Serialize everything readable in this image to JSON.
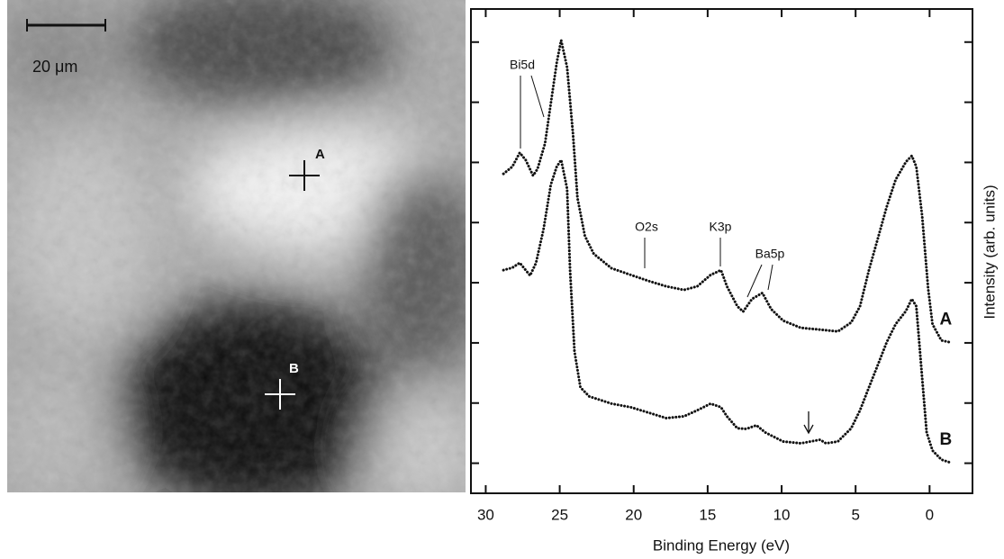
{
  "image": {
    "scale_bar": "20 μm",
    "points": [
      "A",
      "B"
    ]
  },
  "chart_data": {
    "type": "line",
    "xlabel": "Binding Energy (eV)",
    "ylabel": "Intensity (arb. units)",
    "xlim": [
      31,
      -2.9
    ],
    "xticks": [
      30,
      25,
      20,
      15,
      10,
      5,
      0
    ],
    "ylim": [
      -0.5,
      7.55
    ],
    "yticks": [
      0,
      1,
      2,
      3,
      4,
      5,
      6,
      7
    ],
    "annotations": [
      "Bi5d",
      "O2s",
      "K3p",
      "Ba5p"
    ],
    "series": [
      {
        "name": "A",
        "color": "#111111",
        "x": [
          28.8,
          28.2,
          27.7,
          27.3,
          26.8,
          26.5,
          26.0,
          25.6,
          25.2,
          24.9,
          24.5,
          24.1,
          23.8,
          23.3,
          22.7,
          21.5,
          20.2,
          19.0,
          17.8,
          16.6,
          15.7,
          14.8,
          14.1,
          13.7,
          13.0,
          12.6,
          12.0,
          11.3,
          10.7,
          9.9,
          8.7,
          7.4,
          6.2,
          5.3,
          4.7,
          4.1,
          3.5,
          2.9,
          2.3,
          1.6,
          1.2,
          0.9,
          0.5,
          0.1,
          -0.2,
          -0.8,
          -1.4
        ],
        "values": [
          4.81,
          4.93,
          5.16,
          5.04,
          4.78,
          4.89,
          5.31,
          5.98,
          6.66,
          7.03,
          6.58,
          5.46,
          4.41,
          3.78,
          3.48,
          3.24,
          3.13,
          3.03,
          2.94,
          2.88,
          2.94,
          3.13,
          3.21,
          2.94,
          2.61,
          2.52,
          2.73,
          2.83,
          2.56,
          2.37,
          2.25,
          2.22,
          2.19,
          2.34,
          2.61,
          3.21,
          3.73,
          4.26,
          4.71,
          5.01,
          5.11,
          4.93,
          4.11,
          2.91,
          2.31,
          2.04,
          2.01
        ]
      },
      {
        "name": "B",
        "color": "#111111",
        "x": [
          28.8,
          28.2,
          27.7,
          27.3,
          27.0,
          26.6,
          26.1,
          25.6,
          25.2,
          24.9,
          24.5,
          24.3,
          24.0,
          23.6,
          23.0,
          21.5,
          20.2,
          19.0,
          17.8,
          16.6,
          15.7,
          14.8,
          14.1,
          13.7,
          13.0,
          12.4,
          11.7,
          11.1,
          9.9,
          8.7,
          7.4,
          7.0,
          6.2,
          5.3,
          4.7,
          4.1,
          3.5,
          2.9,
          2.3,
          1.6,
          1.2,
          0.9,
          0.6,
          0.2,
          -0.2,
          -0.8,
          -1.4
        ],
        "values": [
          3.21,
          3.25,
          3.33,
          3.21,
          3.12,
          3.33,
          3.88,
          4.63,
          4.93,
          5.04,
          4.56,
          3.21,
          1.86,
          1.26,
          1.11,
          0.99,
          0.93,
          0.84,
          0.75,
          0.78,
          0.88,
          0.99,
          0.93,
          0.78,
          0.58,
          0.57,
          0.63,
          0.51,
          0.36,
          0.33,
          0.39,
          0.33,
          0.36,
          0.58,
          0.88,
          1.26,
          1.63,
          2.01,
          2.31,
          2.53,
          2.73,
          2.61,
          1.71,
          0.51,
          0.21,
          0.06,
          0.01
        ]
      }
    ]
  }
}
